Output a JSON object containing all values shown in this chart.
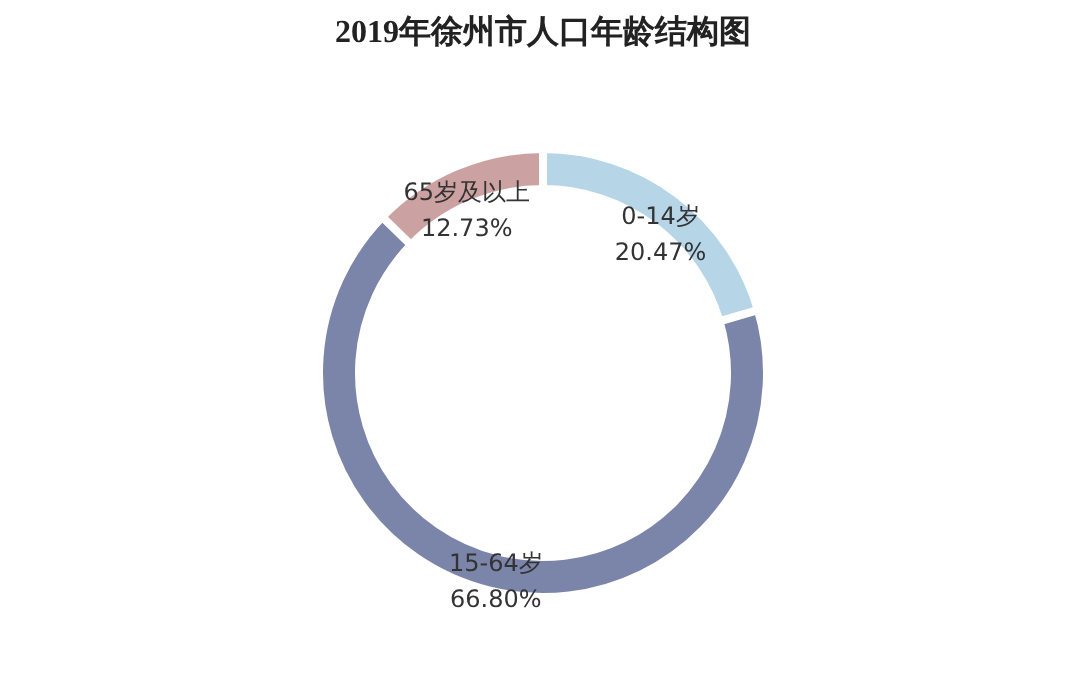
{
  "chart_data": {
    "type": "donut",
    "title": "2019年徐州市人口年龄结构图",
    "categories": [
      "0-14岁",
      "15-64岁",
      "65岁及以上"
    ],
    "values": [
      20.47,
      66.8,
      12.73
    ],
    "value_labels": [
      "20.47%",
      "66.80%",
      "12.73%"
    ],
    "colors": [
      "#b6d5e7",
      "#7b84a9",
      "#cba1a1"
    ]
  }
}
